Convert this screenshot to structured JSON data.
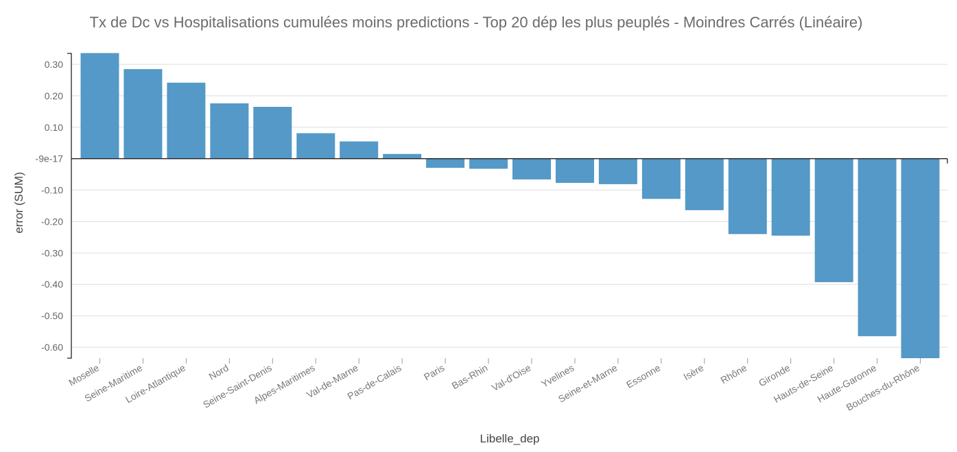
{
  "chart_data": {
    "type": "bar",
    "title": "Tx de Dc vs Hospitalisations cumulées moins predictions - Top 20 dép les plus peuplés - Moindres Carrés (Linéaire)",
    "xlabel": "Libelle_dep",
    "ylabel": "error (SUM)",
    "ylim": [
      -0.635,
      0.335
    ],
    "y_ticks": [
      {
        "value": 0.3,
        "label": "0.30"
      },
      {
        "value": 0.2,
        "label": "0.20"
      },
      {
        "value": 0.1,
        "label": "0.10"
      },
      {
        "value": 0,
        "label": "-9e-17"
      },
      {
        "value": -0.1,
        "label": "-0.10"
      },
      {
        "value": -0.2,
        "label": "-0.20"
      },
      {
        "value": -0.3,
        "label": "-0.30"
      },
      {
        "value": -0.4,
        "label": "-0.40"
      },
      {
        "value": -0.5,
        "label": "-0.50"
      },
      {
        "value": -0.6,
        "label": "-0.60"
      }
    ],
    "grid": true,
    "bar_color": "#5499c7",
    "categories": [
      "Moselle",
      "Seine-Maritime",
      "Loire-Atlantique",
      "Nord",
      "Seine-Saint-Denis",
      "Alpes-Maritimes",
      "Val-de-Marne",
      "Pas-de-Calais",
      "Paris",
      "Bas-Rhin",
      "Val-d'Oise",
      "Yvelines",
      "Seine-et-Marne",
      "Essonne",
      "Isère",
      "Rhône",
      "Gironde",
      "Hauts-de-Seine",
      "Haute-Garonne",
      "Bouches-du-Rhône"
    ],
    "values": [
      0.336,
      0.285,
      0.242,
      0.176,
      0.165,
      0.081,
      0.055,
      0.015,
      -0.029,
      -0.032,
      -0.066,
      -0.077,
      -0.081,
      -0.128,
      -0.164,
      -0.24,
      -0.245,
      -0.393,
      -0.565,
      -0.635
    ]
  }
}
